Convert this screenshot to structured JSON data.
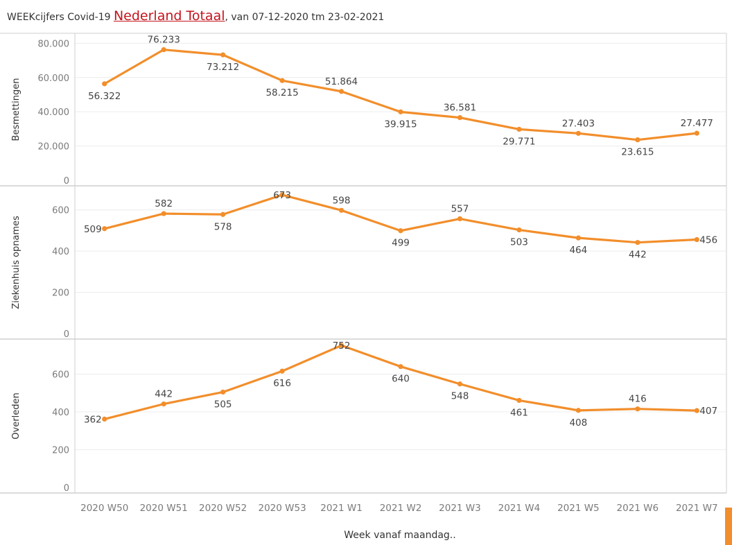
{
  "title": {
    "prefix": "WEEKcijfers Covid-19 ",
    "place": "Nederland Totaal",
    "suffix": ", van 07-12-2020 tm 23-02-2021"
  },
  "colors": {
    "line": "#f28e2b",
    "grid": "#ececec",
    "border": "#cfcfcf",
    "title_place": "#c4131b"
  },
  "chart_data": {
    "type": "line",
    "categories": [
      "2020 W50",
      "2020 W51",
      "2020 W52",
      "2020 W53",
      "2021 W1",
      "2021 W2",
      "2021 W3",
      "2021 W4",
      "2021 W5",
      "2021 W6",
      "2021 W7"
    ],
    "xlabel": "Week vanaf maandag..",
    "panels": [
      {
        "name": "Besmettingen",
        "ylabel": "Besmettingen",
        "values": [
          56322,
          76233,
          73212,
          58215,
          51864,
          39915,
          36581,
          29771,
          27403,
          23615,
          27477
        ],
        "value_labels": [
          "56.322",
          "76.233",
          "73.212",
          "58.215",
          "51.864",
          "39.915",
          "36.581",
          "29.771",
          "27.403",
          "23.615",
          "27.477"
        ],
        "ylim": [
          0,
          85000
        ],
        "ticks": [
          0,
          20000,
          40000,
          60000,
          80000
        ],
        "tick_labels": [
          "0",
          "20.000",
          "40.000",
          "60.000",
          "80.000"
        ],
        "label_pos": [
          "below",
          "above",
          "below",
          "below",
          "above",
          "below",
          "above",
          "below",
          "above",
          "below",
          "above"
        ]
      },
      {
        "name": "Ziekenhuis opnames",
        "ylabel": "Ziekenhuis opnames",
        "values": [
          509,
          582,
          578,
          673,
          598,
          499,
          557,
          503,
          464,
          442,
          456
        ],
        "value_labels": [
          "509",
          "582",
          "578",
          "673",
          "598",
          "499",
          "557",
          "503",
          "464",
          "442",
          "456"
        ],
        "ylim": [
          0,
          690
        ],
        "ticks": [
          0,
          200,
          400,
          600
        ],
        "tick_labels": [
          "0",
          "200",
          "400",
          "600"
        ],
        "label_pos": [
          "left",
          "above",
          "below",
          "center",
          "above",
          "below",
          "above",
          "below",
          "below",
          "below",
          "right"
        ]
      },
      {
        "name": "Overleden",
        "ylabel": "Overleden",
        "values": [
          362,
          442,
          505,
          616,
          752,
          640,
          548,
          461,
          408,
          416,
          407
        ],
        "value_labels": [
          "362",
          "442",
          "505",
          "616",
          "752",
          "640",
          "548",
          "461",
          "408",
          "416",
          "407"
        ],
        "ylim": [
          0,
          760
        ],
        "ticks": [
          0,
          200,
          400,
          600
        ],
        "tick_labels": [
          "0",
          "200",
          "400",
          "600"
        ],
        "label_pos": [
          "left",
          "above",
          "below",
          "below",
          "center",
          "below",
          "below",
          "below",
          "below",
          "above",
          "right"
        ]
      }
    ]
  }
}
